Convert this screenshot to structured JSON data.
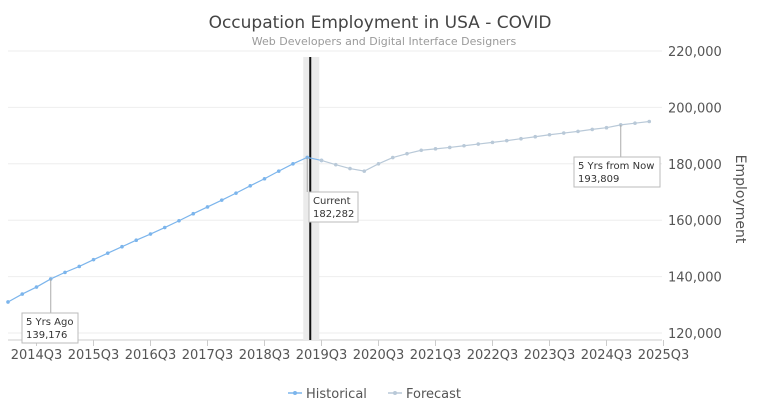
{
  "chart_data": {
    "type": "line",
    "title": "Occupation Employment in USA - COVID",
    "subtitle": "Web Developers and Digital Interface Designers",
    "ylabel": "Employment",
    "ylim": [
      120000,
      220000
    ],
    "yticks": [
      "120,000",
      "140,000",
      "160,000",
      "180,000",
      "200,000",
      "220,000"
    ],
    "ytick_values": [
      120000,
      140000,
      160000,
      180000,
      200000,
      220000
    ],
    "xticks": [
      "2014Q3",
      "2015Q3",
      "2016Q3",
      "2017Q3",
      "2018Q3",
      "2019Q3",
      "2020Q3",
      "2021Q3",
      "2022Q3",
      "2023Q3",
      "2024Q3",
      "2025Q3"
    ],
    "legend_position": "bottom",
    "series": [
      {
        "name": "Historical",
        "color": "#7cb5ec",
        "x": [
          "2014Q1",
          "2014Q2",
          "2014Q3",
          "2014Q4",
          "2015Q1",
          "2015Q2",
          "2015Q3",
          "2015Q4",
          "2016Q1",
          "2016Q2",
          "2016Q3",
          "2016Q4",
          "2017Q1",
          "2017Q2",
          "2017Q3",
          "2017Q4",
          "2018Q1",
          "2018Q2",
          "2018Q3",
          "2018Q4",
          "2019Q1",
          "2019Q2",
          "2019Q3"
        ],
        "values": [
          131000,
          133800,
          136300,
          139176,
          141500,
          143600,
          146000,
          148300,
          150600,
          152900,
          155100,
          157400,
          159800,
          162300,
          164700,
          167100,
          169600,
          172200,
          174700,
          177400,
          180000,
          182282,
          181200
        ]
      },
      {
        "name": "Forecast",
        "color": "#b9c9d8",
        "x": [
          "2019Q3",
          "2019Q4",
          "2020Q1",
          "2020Q2",
          "2020Q3",
          "2020Q4",
          "2021Q1",
          "2021Q2",
          "2021Q3",
          "2021Q4",
          "2022Q1",
          "2022Q2",
          "2022Q3",
          "2022Q4",
          "2023Q1",
          "2023Q2",
          "2023Q3",
          "2023Q4",
          "2024Q1",
          "2024Q2",
          "2024Q3",
          "2024Q4",
          "2025Q1",
          "2025Q2"
        ],
        "values": [
          181200,
          179700,
          178300,
          177400,
          180000,
          182200,
          183600,
          184800,
          185300,
          185800,
          186400,
          187000,
          187600,
          188200,
          188900,
          189600,
          190300,
          190900,
          191500,
          192200,
          192800,
          193809,
          194400,
          195000
        ]
      }
    ],
    "annotations": [
      {
        "label": "5 Yrs Ago",
        "value": "139,176",
        "x": "2014Q4",
        "y": 139176
      },
      {
        "label": "Current",
        "value": "182,282",
        "x": "2019Q2",
        "y": 182282
      },
      {
        "label": "5 Yrs from Now",
        "value": "193,809",
        "x": "2024Q4",
        "y": 193809
      }
    ],
    "current_marker": "2019Q2"
  }
}
